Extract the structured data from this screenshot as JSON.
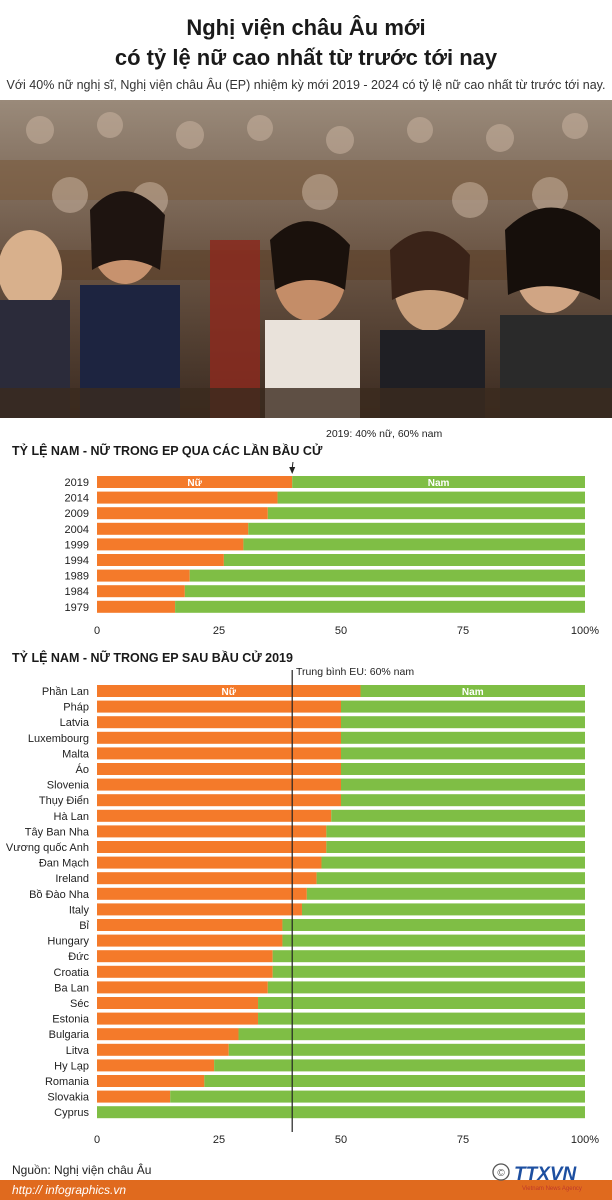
{
  "header": {
    "title_line1": "Nghị viện châu Âu mới",
    "title_line2": "có tỷ lệ nữ cao nhất từ trước tới nay",
    "subtitle": "Với 40% nữ nghị sĩ, Nghị viện châu Âu (EP) nhiệm kỳ mới 2019 - 2024 có tỷ lệ nữ cao nhất từ trước tới nay."
  },
  "colors": {
    "female": "#f47a2a",
    "male": "#7fbe45",
    "accent": "#e06a1e"
  },
  "chart_data": [
    {
      "type": "bar",
      "orientation": "horizontal",
      "stacked": true,
      "title": "TỶ LỆ NAM - NỮ TRONG EP QUA CÁC LẦN BẦU CỬ",
      "categories": [
        "2019",
        "2014",
        "2009",
        "2004",
        "1999",
        "1994",
        "1989",
        "1984",
        "1979"
      ],
      "series": [
        {
          "name": "Nữ",
          "values": [
            40,
            37,
            35,
            31,
            30,
            26,
            19,
            18,
            16
          ]
        },
        {
          "name": "Nam",
          "values": [
            60,
            63,
            65,
            69,
            70,
            74,
            81,
            82,
            84
          ]
        }
      ],
      "x_ticks": [
        "0",
        "25",
        "50",
        "75",
        "100%"
      ],
      "xlim": [
        0,
        100
      ],
      "annotation": "2019: 40% nữ, 60% nam"
    },
    {
      "type": "bar",
      "orientation": "horizontal",
      "stacked": true,
      "title": "TỶ LỆ NAM - NỮ TRONG EP SAU BẦU CỬ 2019",
      "categories": [
        "Phần Lan",
        "Pháp",
        "Latvia",
        "Luxembourg",
        "Malta",
        "Áo",
        "Slovenia",
        "Thụy Điển",
        "Hà Lan",
        "Tây Ban Nha",
        "Vương quốc Anh",
        "Đan Mạch",
        "Ireland",
        "Bồ Đào Nha",
        "Italy",
        "Bỉ",
        "Hungary",
        "Đức",
        "Croatia",
        "Ba Lan",
        "Séc",
        "Estonia",
        "Bulgaria",
        "Litva",
        "Hy Lạp",
        "Romania",
        "Slovakia",
        "Cyprus"
      ],
      "series": [
        {
          "name": "Nữ",
          "values": [
            54,
            50,
            50,
            50,
            50,
            50,
            50,
            50,
            48,
            47,
            47,
            46,
            45,
            43,
            42,
            38,
            38,
            36,
            36,
            35,
            33,
            33,
            29,
            27,
            24,
            22,
            15,
            0
          ]
        },
        {
          "name": "Nam",
          "values": [
            46,
            50,
            50,
            50,
            50,
            50,
            50,
            50,
            52,
            53,
            53,
            54,
            55,
            57,
            58,
            62,
            62,
            64,
            64,
            65,
            67,
            67,
            71,
            73,
            76,
            78,
            85,
            100
          ]
        }
      ],
      "x_ticks": [
        "0",
        "25",
        "50",
        "75",
        "100%"
      ],
      "xlim": [
        0,
        100
      ],
      "reference_line": {
        "label": "Trung bình EU: 60% nam",
        "female_value": 40
      }
    }
  ],
  "footer": {
    "source": "Nguồn: Nghị viện châu Âu",
    "url": "http:// infographics.vn",
    "logo_text": "TTXVN",
    "logo_sub": "Vietnam News Agency"
  }
}
